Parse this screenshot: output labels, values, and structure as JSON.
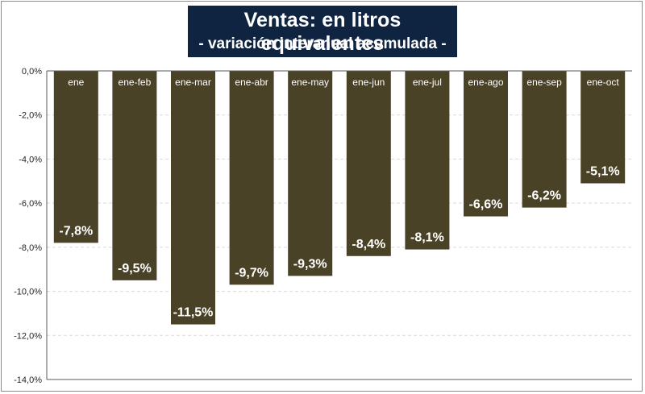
{
  "chart_data": {
    "type": "bar",
    "title": "Ventas: en litros equivalentes",
    "subtitle": "- variación interanual acumulada -",
    "categories": [
      "ene",
      "ene-feb",
      "ene-mar",
      "ene-abr",
      "ene-may",
      "ene-jun",
      "ene-jul",
      "ene-ago",
      "ene-sep",
      "ene-oct"
    ],
    "values": [
      -7.8,
      -9.5,
      -11.5,
      -9.7,
      -9.3,
      -8.4,
      -8.1,
      -6.6,
      -6.2,
      -5.1
    ],
    "data_labels": [
      "-7,8%",
      "-9,5%",
      "-11,5%",
      "-9,7%",
      "-9,3%",
      "-8,4%",
      "-8,1%",
      "-6,6%",
      "-6,2%",
      "-5,1%"
    ],
    "ylim": [
      -14,
      0
    ],
    "yticks": [
      0,
      -2,
      -4,
      -6,
      -8,
      -10,
      -12,
      -14
    ],
    "ytick_labels": [
      "0,0%",
      "-2,0%",
      "-4,0%",
      "-6,0%",
      "-8,0%",
      "-10,0%",
      "-12,0%",
      "-14,0%"
    ],
    "xlabel": "",
    "ylabel": "",
    "grid": true,
    "legend": false,
    "colors": {
      "bar": "#4a4227",
      "title_bg": "#0f2441",
      "grid": "#d9d9d9"
    }
  }
}
